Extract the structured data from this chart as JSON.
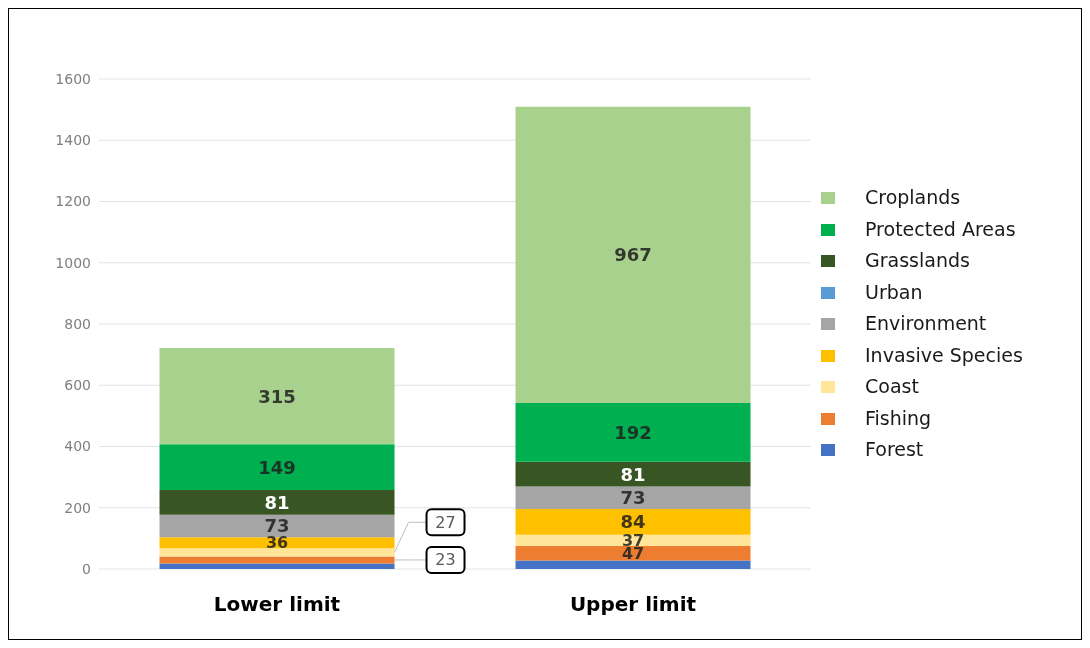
{
  "chart_data": {
    "type": "bar",
    "stacked": true,
    "categories": [
      "Lower limit",
      "Upper limit"
    ],
    "series": [
      {
        "name": "Forest",
        "color": "#4472c4",
        "values": [
          18,
          28
        ],
        "value_labels": [
          null,
          null
        ]
      },
      {
        "name": "Fishing",
        "color": "#ed7d31",
        "values": [
          23,
          47
        ],
        "value_labels": [
          "23",
          "47"
        ]
      },
      {
        "name": "Coast",
        "color": "#ffe699",
        "values": [
          27,
          37
        ],
        "value_labels": [
          "27",
          "37"
        ]
      },
      {
        "name": "Invasive Species",
        "color": "#ffc000",
        "values": [
          36,
          84
        ],
        "value_labels": [
          "36",
          "84"
        ]
      },
      {
        "name": "Environment",
        "color": "#a5a5a5",
        "values": [
          73,
          73
        ],
        "value_labels": [
          "73",
          "73"
        ]
      },
      {
        "name": "Urban",
        "color": "#5b9bd5",
        "values": [
          null,
          null
        ]
      },
      {
        "name": "Grasslands",
        "color": "#375623",
        "values": [
          81,
          81
        ],
        "value_labels": [
          "81",
          "81"
        ]
      },
      {
        "name": "Protected Areas",
        "color": "#00b050",
        "values": [
          149,
          192
        ],
        "value_labels": [
          "149",
          "192"
        ]
      },
      {
        "name": "Croplands",
        "color": "#a9d18e",
        "values": [
          315,
          967
        ],
        "value_labels": [
          "315",
          "967"
        ]
      }
    ],
    "ylim": [
      0,
      1600
    ],
    "yticks": [
      0,
      200,
      400,
      600,
      800,
      1000,
      1200,
      1400,
      1600
    ],
    "grid": "y",
    "legend": "right"
  }
}
